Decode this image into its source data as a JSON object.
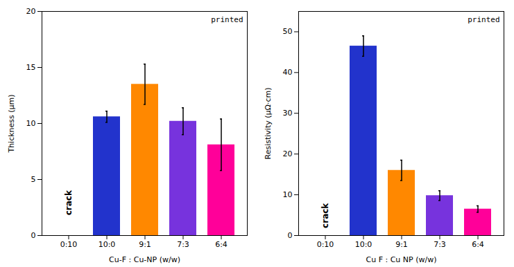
{
  "chart_data": [
    {
      "type": "bar",
      "categories": [
        "0:10",
        "10:0",
        "9:1",
        "7:3",
        "6:4"
      ],
      "values": [
        null,
        10.6,
        13.5,
        10.2,
        8.1
      ],
      "errors": [
        null,
        0.5,
        1.8,
        1.2,
        2.3
      ],
      "colors": [
        "none",
        "#2233cc",
        "#ff8800",
        "#7733dd",
        "#ff0099"
      ],
      "ylabel": "Thickness (μm)",
      "xlabel": "Cu-F : Cu-NP (w/w)",
      "ylim": [
        0,
        20
      ],
      "yticks": [
        0,
        5,
        10,
        15,
        20
      ],
      "annotations": [
        {
          "text": "crack",
          "x": "0:10",
          "y": 1.8
        },
        {
          "text": "printed"
        }
      ]
    },
    {
      "type": "bar",
      "categories": [
        "0:10",
        "10:0",
        "9:1",
        "7:3",
        "6:4"
      ],
      "values": [
        null,
        46.5,
        16.0,
        9.8,
        6.5
      ],
      "errors": [
        null,
        2.5,
        2.5,
        1.2,
        0.8
      ],
      "colors": [
        "none",
        "#2233cc",
        "#ff8800",
        "#7733dd",
        "#ff0099"
      ],
      "ylabel": "Resistivity (μΩ·cm)",
      "xlabel": "Cu F : Cu NP (w/w)",
      "ylim": [
        0,
        55
      ],
      "yticks": [
        0,
        10,
        20,
        30,
        40,
        50
      ],
      "annotations": [
        {
          "text": "crack",
          "x": "0:10",
          "y": 1.8
        },
        {
          "text": "printed"
        }
      ]
    }
  ]
}
